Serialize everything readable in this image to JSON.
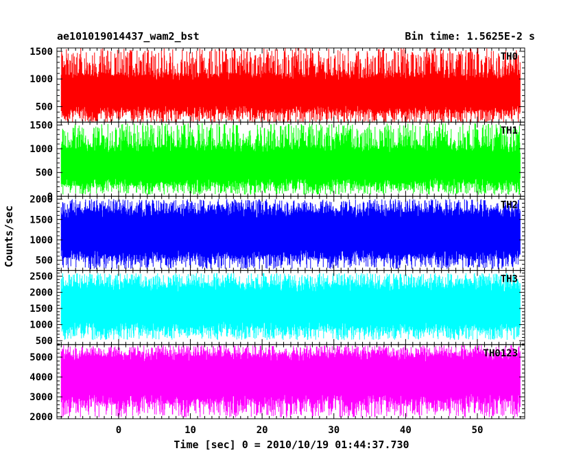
{
  "chart_data": {
    "type": "line",
    "title": "ae101019014437_wam2_bst",
    "subtitle": "Bin time: 1.5625E-2 s",
    "xlabel": "Time [sec] 0 = 2010/10/19 01:44:37.730",
    "ylabel": "Counts/sec",
    "xlim": [
      -8.6,
      56.6
    ],
    "data_x_range": [
      -8.0,
      56.0
    ],
    "x_ticks": [
      0,
      10,
      20,
      30,
      40,
      50
    ],
    "grid": false,
    "panels": [
      {
        "name": "TH0",
        "color": "#ff0000",
        "ylim": [
          220,
          1560
        ],
        "y_ticks": [
          500,
          1000,
          1500
        ],
        "band_low": 450,
        "band_high": 1050,
        "spike_min": 200,
        "spike_max": 1560
      },
      {
        "name": "TH1",
        "color": "#00ff00",
        "ylim": [
          0,
          1560
        ],
        "y_ticks": [
          0,
          500,
          1000,
          1500
        ],
        "band_low": 300,
        "band_high": 1000,
        "spike_min": 30,
        "spike_max": 1540
      },
      {
        "name": "TH2",
        "color": "#0000ff",
        "ylim": [
          250,
          2070
        ],
        "y_ticks": [
          500,
          1000,
          1500,
          2000
        ],
        "band_low": 650,
        "band_high": 1650,
        "spike_min": 280,
        "spike_max": 2000
      },
      {
        "name": "TH3",
        "color": "#00ffff",
        "ylim": [
          380,
          2680
        ],
        "y_ticks": [
          500,
          1000,
          1500,
          2000,
          2500
        ],
        "band_low": 950,
        "band_high": 2150,
        "spike_min": 520,
        "spike_max": 2600
      },
      {
        "name": "TH0123",
        "color": "#ff00ff",
        "ylim": [
          1900,
          5630
        ],
        "y_ticks": [
          2000,
          3000,
          4000,
          5000
        ],
        "band_low": 2900,
        "band_high": 5000,
        "spike_min": 1950,
        "spike_max": 5600
      }
    ]
  }
}
